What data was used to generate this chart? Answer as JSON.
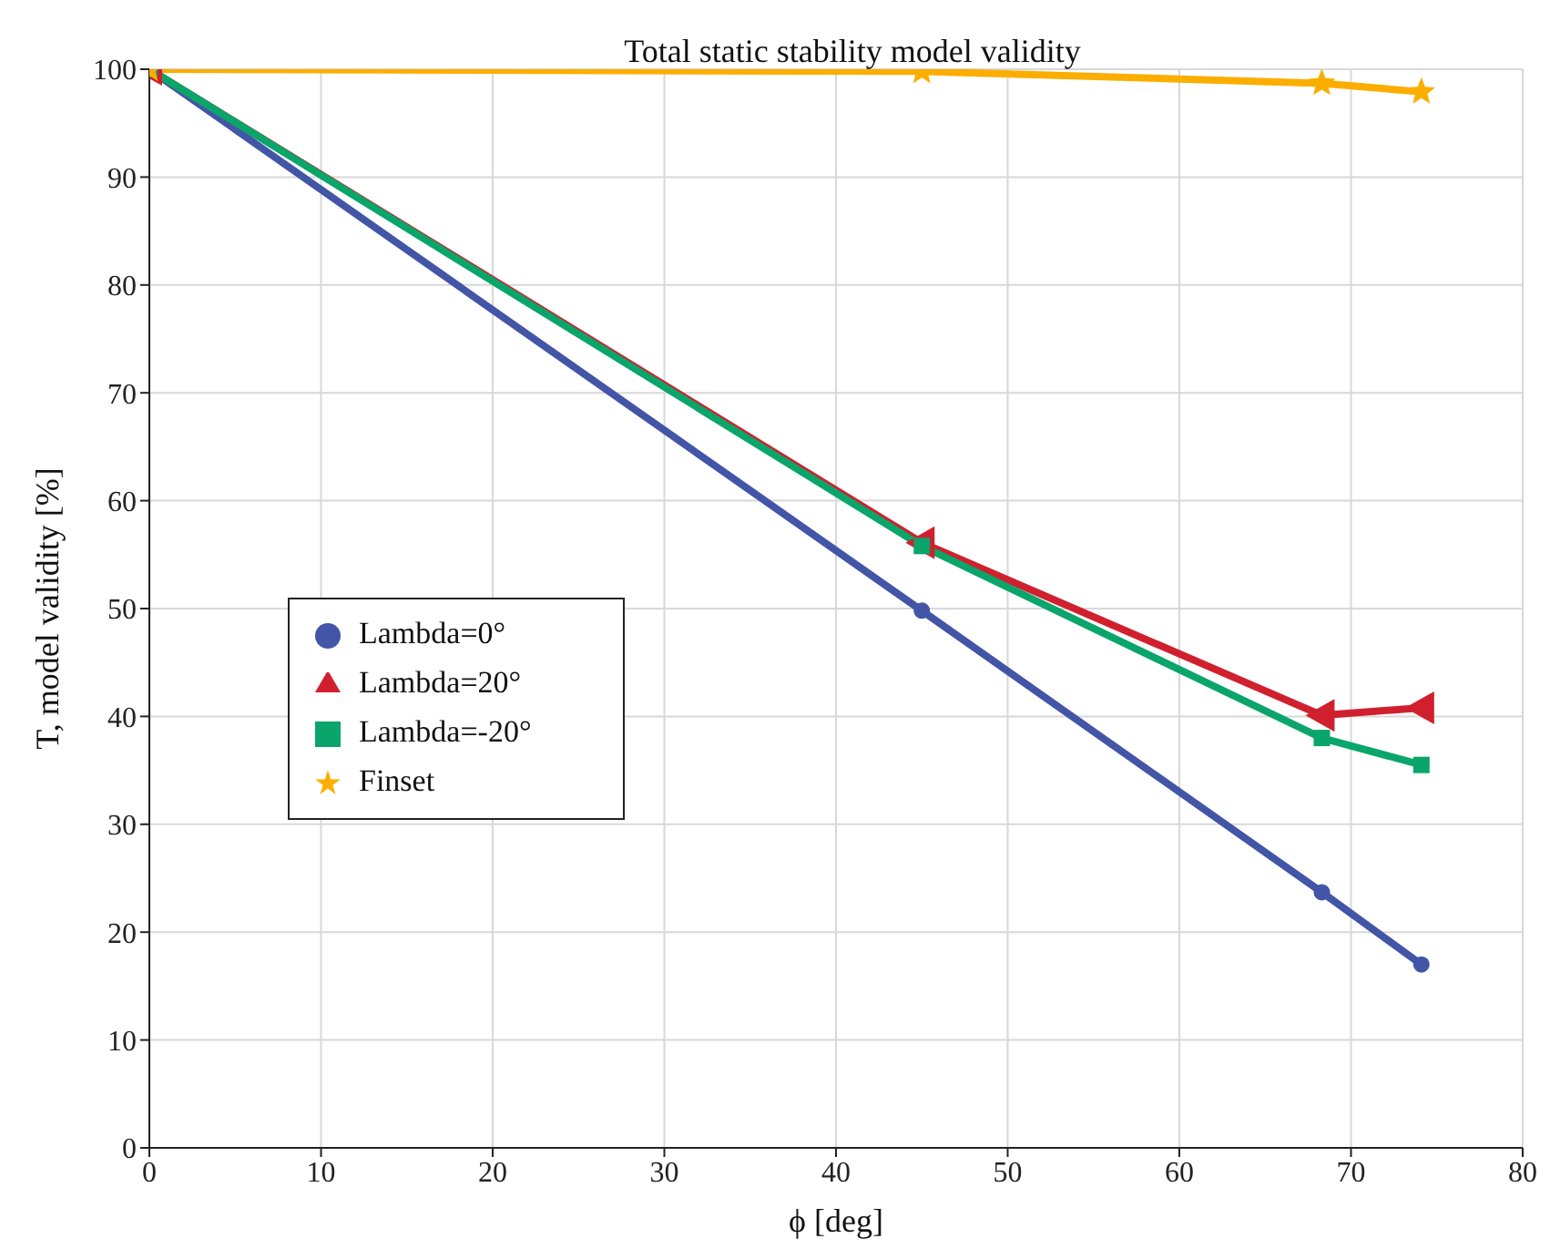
{
  "chart_data": {
    "type": "line",
    "title": "Total static stability model validity",
    "xlabel": "ϕ [deg]",
    "ylabel": "T, model validity [%]",
    "xlim": [
      0,
      80
    ],
    "xticks": [
      0,
      10,
      20,
      30,
      40,
      50,
      60,
      70,
      80
    ],
    "ylim": [
      0,
      100
    ],
    "yticks": [
      0,
      10,
      20,
      30,
      40,
      50,
      60,
      70,
      80,
      90,
      100
    ],
    "grid": true,
    "legend": "left",
    "series": [
      {
        "name": "Lambda=0°",
        "color": "#4355a7",
        "marker": "circle",
        "x": [
          0,
          45,
          68.3,
          74.1
        ],
        "values": [
          100,
          49.8,
          23.7,
          17.0
        ]
      },
      {
        "name": "Lambda=20°",
        "color": "#d0202e",
        "marker": "triangle",
        "x": [
          0,
          45,
          68.3,
          74.1
        ],
        "values": [
          100,
          56.1,
          40.1,
          40.8
        ]
      },
      {
        "name": "Lambda=-20°",
        "color": "#0aa56a",
        "marker": "square",
        "x": [
          0,
          45,
          68.3,
          74.1
        ],
        "values": [
          100,
          55.8,
          38.0,
          35.5
        ]
      },
      {
        "name": "Finset",
        "color": "#fbae00",
        "marker": "star",
        "x": [
          0,
          45,
          68.3,
          74.1
        ],
        "values": [
          100,
          99.8,
          98.7,
          97.9
        ]
      }
    ]
  }
}
